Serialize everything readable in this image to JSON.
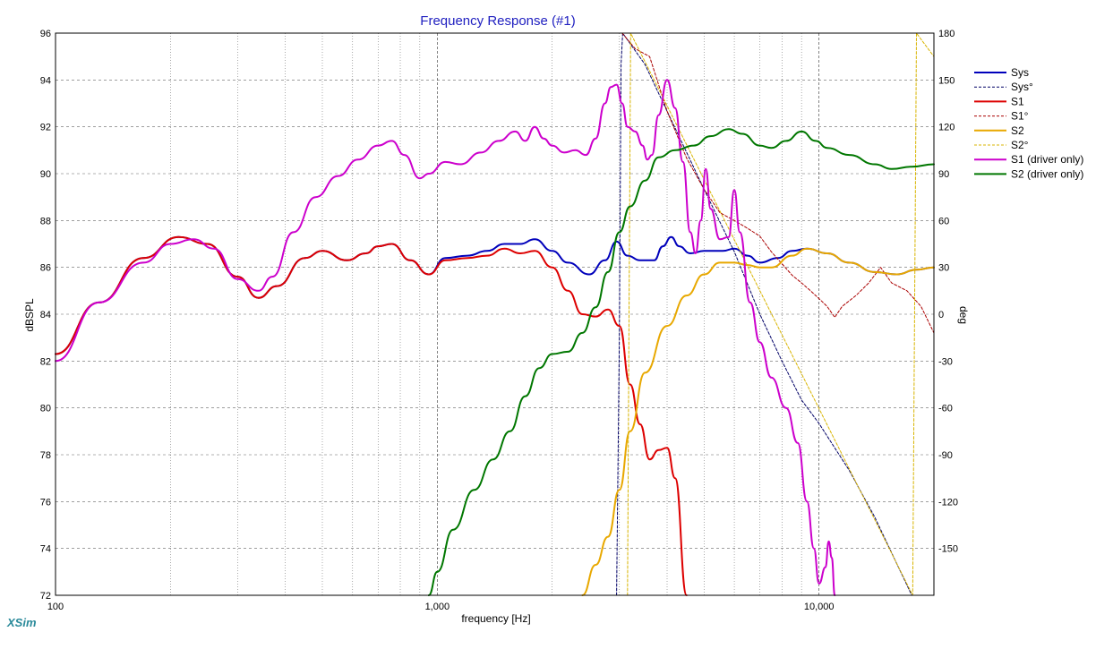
{
  "app": {
    "brand": "XSim"
  },
  "chart_data": {
    "type": "line",
    "title": "Frequency Response (#1)",
    "xlabel": "frequency [Hz]",
    "ylabel_left": "dBSPL",
    "ylabel_right": "deg",
    "x_scale": "log",
    "xlim": [
      100,
      20000
    ],
    "ylim_left": [
      72,
      96
    ],
    "ylim_right": [
      -180,
      180
    ],
    "x_tick_labels": [
      {
        "value": 100,
        "label": "100"
      },
      {
        "value": 1000,
        "label": "1,000"
      },
      {
        "value": 10000,
        "label": "10,000"
      }
    ],
    "y_left_ticks": [
      "72",
      "74",
      "76",
      "78",
      "80",
      "82",
      "84",
      "86",
      "88",
      "90",
      "92",
      "94",
      "96"
    ],
    "y_right_ticks": [
      "-150",
      "-120",
      "-90",
      "-60",
      "-30",
      "0",
      "30",
      "60",
      "90",
      "120",
      "150",
      "180"
    ],
    "grid": true,
    "legend_position": "right",
    "series": [
      {
        "name": "Sys",
        "axis": "left",
        "color": "#0000bb",
        "style": "solid",
        "width": 2,
        "points": [
          [
            100,
            82.3
          ],
          [
            130,
            84.5
          ],
          [
            170,
            86.4
          ],
          [
            210,
            87.3
          ],
          [
            250,
            87.0
          ],
          [
            300,
            85.6
          ],
          [
            340,
            84.7
          ],
          [
            380,
            85.2
          ],
          [
            450,
            86.4
          ],
          [
            500,
            86.7
          ],
          [
            580,
            86.3
          ],
          [
            650,
            86.6
          ],
          [
            700,
            86.9
          ],
          [
            760,
            87.0
          ],
          [
            850,
            86.3
          ],
          [
            950,
            85.7
          ],
          [
            1050,
            86.4
          ],
          [
            1200,
            86.5
          ],
          [
            1350,
            86.7
          ],
          [
            1500,
            87.0
          ],
          [
            1650,
            87.0
          ],
          [
            1800,
            87.2
          ],
          [
            2000,
            86.7
          ],
          [
            2200,
            86.2
          ],
          [
            2500,
            85.7
          ],
          [
            2750,
            86.3
          ],
          [
            2950,
            87.1
          ],
          [
            3150,
            86.5
          ],
          [
            3400,
            86.3
          ],
          [
            3700,
            86.3
          ],
          [
            3900,
            86.9
          ],
          [
            4100,
            87.3
          ],
          [
            4300,
            86.9
          ],
          [
            4600,
            86.6
          ],
          [
            5000,
            86.7
          ],
          [
            5600,
            86.7
          ],
          [
            6000,
            86.8
          ],
          [
            6500,
            86.5
          ],
          [
            7000,
            86.2
          ],
          [
            7800,
            86.4
          ],
          [
            8500,
            86.7
          ],
          [
            9300,
            86.8
          ],
          [
            10500,
            86.6
          ],
          [
            12000,
            86.2
          ],
          [
            14000,
            85.8
          ],
          [
            16000,
            85.7
          ],
          [
            18000,
            85.9
          ],
          [
            20000,
            86.0
          ]
        ]
      },
      {
        "name": "Sys°",
        "axis": "right",
        "color": "#000066",
        "style": "dashed",
        "width": 1,
        "points": [
          [
            2950,
            -180
          ],
          [
            3000,
            -15
          ],
          [
            3030,
            160
          ],
          [
            3060,
            180
          ],
          [
            3500,
            160
          ],
          [
            4000,
            130
          ],
          [
            5000,
            80
          ],
          [
            6000,
            40
          ],
          [
            7000,
            0
          ],
          [
            8000,
            -30
          ],
          [
            9000,
            -55
          ],
          [
            10000,
            -70
          ],
          [
            12000,
            -100
          ],
          [
            14000,
            -130
          ],
          [
            16000,
            -160
          ],
          [
            17500,
            -180
          ]
        ]
      },
      {
        "name": "S1",
        "axis": "left",
        "color": "#dd0000",
        "style": "solid",
        "width": 2,
        "points": [
          [
            100,
            82.3
          ],
          [
            130,
            84.5
          ],
          [
            170,
            86.4
          ],
          [
            210,
            87.3
          ],
          [
            250,
            87.0
          ],
          [
            300,
            85.6
          ],
          [
            340,
            84.7
          ],
          [
            380,
            85.2
          ],
          [
            450,
            86.4
          ],
          [
            500,
            86.7
          ],
          [
            580,
            86.3
          ],
          [
            650,
            86.6
          ],
          [
            700,
            86.9
          ],
          [
            760,
            87.0
          ],
          [
            850,
            86.3
          ],
          [
            950,
            85.7
          ],
          [
            1050,
            86.3
          ],
          [
            1200,
            86.4
          ],
          [
            1350,
            86.5
          ],
          [
            1500,
            86.8
          ],
          [
            1650,
            86.6
          ],
          [
            1800,
            86.7
          ],
          [
            2000,
            86.0
          ],
          [
            2200,
            85.0
          ],
          [
            2400,
            84.0
          ],
          [
            2600,
            83.9
          ],
          [
            2800,
            84.2
          ],
          [
            3000,
            83.5
          ],
          [
            3200,
            81.0
          ],
          [
            3400,
            79.3
          ],
          [
            3600,
            77.8
          ],
          [
            3800,
            78.2
          ],
          [
            4000,
            78.3
          ],
          [
            4200,
            77.0
          ],
          [
            4500,
            72.0
          ]
        ]
      },
      {
        "name": "S1°",
        "axis": "right",
        "color": "#aa0000",
        "style": "dashed",
        "width": 1,
        "points": [
          [
            3050,
            180
          ],
          [
            3300,
            170
          ],
          [
            3600,
            165
          ],
          [
            4000,
            130
          ],
          [
            4500,
            100
          ],
          [
            5000,
            80
          ],
          [
            5500,
            65
          ],
          [
            6000,
            60
          ],
          [
            6500,
            55
          ],
          [
            7000,
            50
          ],
          [
            7500,
            40
          ],
          [
            8500,
            25
          ],
          [
            9000,
            20
          ],
          [
            9500,
            15
          ],
          [
            10000,
            10
          ],
          [
            10500,
            5
          ],
          [
            11000,
            -2
          ],
          [
            11500,
            5
          ],
          [
            12500,
            12
          ],
          [
            13500,
            20
          ],
          [
            14500,
            30
          ],
          [
            15500,
            20
          ],
          [
            17000,
            15
          ],
          [
            18500,
            5
          ],
          [
            20000,
            -12
          ]
        ]
      },
      {
        "name": "S2",
        "axis": "left",
        "color": "#e8a800",
        "style": "solid",
        "width": 2,
        "points": [
          [
            2400,
            72.0
          ],
          [
            2600,
            73.3
          ],
          [
            2800,
            74.5
          ],
          [
            3000,
            76.5
          ],
          [
            3200,
            79.0
          ],
          [
            3500,
            81.5
          ],
          [
            4000,
            83.5
          ],
          [
            4500,
            84.8
          ],
          [
            5000,
            85.7
          ],
          [
            5500,
            86.2
          ],
          [
            6000,
            86.2
          ],
          [
            6500,
            86.1
          ],
          [
            7000,
            86.0
          ],
          [
            7500,
            86.0
          ],
          [
            8500,
            86.5
          ],
          [
            9300,
            86.8
          ],
          [
            10500,
            86.6
          ],
          [
            12000,
            86.2
          ],
          [
            14000,
            85.8
          ],
          [
            16000,
            85.7
          ],
          [
            18000,
            85.9
          ],
          [
            20000,
            86.0
          ]
        ]
      },
      {
        "name": "S2°",
        "axis": "right",
        "color": "#d8b400",
        "style": "dashed",
        "width": 1,
        "points": [
          [
            3150,
            -180
          ],
          [
            3180,
            0
          ],
          [
            3210,
            180
          ],
          [
            17600,
            -180
          ],
          [
            17800,
            0
          ],
          [
            18000,
            180
          ],
          [
            20000,
            165
          ]
        ]
      },
      {
        "name": "S1 (driver only)",
        "axis": "left",
        "color": "#cc00cc",
        "style": "solid",
        "width": 2,
        "points": [
          [
            100,
            82.0
          ],
          [
            130,
            84.5
          ],
          [
            170,
            86.2
          ],
          [
            200,
            87.0
          ],
          [
            230,
            87.2
          ],
          [
            260,
            86.8
          ],
          [
            300,
            85.5
          ],
          [
            340,
            85.0
          ],
          [
            370,
            85.6
          ],
          [
            420,
            87.5
          ],
          [
            480,
            89.0
          ],
          [
            550,
            89.9
          ],
          [
            620,
            90.6
          ],
          [
            700,
            91.2
          ],
          [
            760,
            91.4
          ],
          [
            820,
            90.8
          ],
          [
            900,
            89.8
          ],
          [
            950,
            90.0
          ],
          [
            1050,
            90.5
          ],
          [
            1150,
            90.4
          ],
          [
            1300,
            90.9
          ],
          [
            1450,
            91.4
          ],
          [
            1600,
            91.8
          ],
          [
            1700,
            91.4
          ],
          [
            1800,
            92.0
          ],
          [
            1900,
            91.5
          ],
          [
            2000,
            91.2
          ],
          [
            2150,
            90.9
          ],
          [
            2300,
            91.0
          ],
          [
            2450,
            90.8
          ],
          [
            2600,
            91.5
          ],
          [
            2750,
            93.0
          ],
          [
            2850,
            93.7
          ],
          [
            2950,
            93.8
          ],
          [
            3050,
            93.0
          ],
          [
            3150,
            92.0
          ],
          [
            3300,
            91.8
          ],
          [
            3450,
            91.2
          ],
          [
            3550,
            90.6
          ],
          [
            3650,
            90.8
          ],
          [
            3800,
            92.5
          ],
          [
            4000,
            94.0
          ],
          [
            4200,
            92.8
          ],
          [
            4400,
            90.5
          ],
          [
            4600,
            87.5
          ],
          [
            4750,
            86.6
          ],
          [
            4900,
            88.0
          ],
          [
            5050,
            90.2
          ],
          [
            5200,
            88.5
          ],
          [
            5500,
            87.2
          ],
          [
            5800,
            87.3
          ],
          [
            6000,
            89.3
          ],
          [
            6200,
            87.5
          ],
          [
            6600,
            84.5
          ],
          [
            7000,
            82.8
          ],
          [
            7500,
            81.3
          ],
          [
            8200,
            80.0
          ],
          [
            8800,
            78.5
          ],
          [
            9300,
            76.0
          ],
          [
            9700,
            74.0
          ],
          [
            10000,
            72.5
          ],
          [
            10400,
            73.2
          ],
          [
            10600,
            74.3
          ],
          [
            10800,
            73.6
          ],
          [
            11000,
            72.0
          ]
        ]
      },
      {
        "name": "S2 (driver only)",
        "axis": "left",
        "color": "#007700",
        "style": "solid",
        "width": 2,
        "points": [
          [
            950,
            72.0
          ],
          [
            1000,
            73.0
          ],
          [
            1100,
            74.8
          ],
          [
            1250,
            76.5
          ],
          [
            1400,
            77.8
          ],
          [
            1550,
            79.0
          ],
          [
            1700,
            80.5
          ],
          [
            1850,
            81.7
          ],
          [
            2000,
            82.3
          ],
          [
            2200,
            82.4
          ],
          [
            2400,
            83.2
          ],
          [
            2600,
            84.3
          ],
          [
            2800,
            85.8
          ],
          [
            3000,
            87.5
          ],
          [
            3200,
            88.6
          ],
          [
            3500,
            89.7
          ],
          [
            3800,
            90.7
          ],
          [
            4200,
            91.0
          ],
          [
            4700,
            91.2
          ],
          [
            5200,
            91.6
          ],
          [
            5800,
            91.9
          ],
          [
            6300,
            91.7
          ],
          [
            7000,
            91.2
          ],
          [
            7500,
            91.1
          ],
          [
            8200,
            91.4
          ],
          [
            9000,
            91.8
          ],
          [
            9800,
            91.4
          ],
          [
            10500,
            91.1
          ],
          [
            12000,
            90.8
          ],
          [
            14000,
            90.4
          ],
          [
            15500,
            90.2
          ],
          [
            17500,
            90.3
          ],
          [
            20000,
            90.4
          ]
        ]
      }
    ]
  }
}
